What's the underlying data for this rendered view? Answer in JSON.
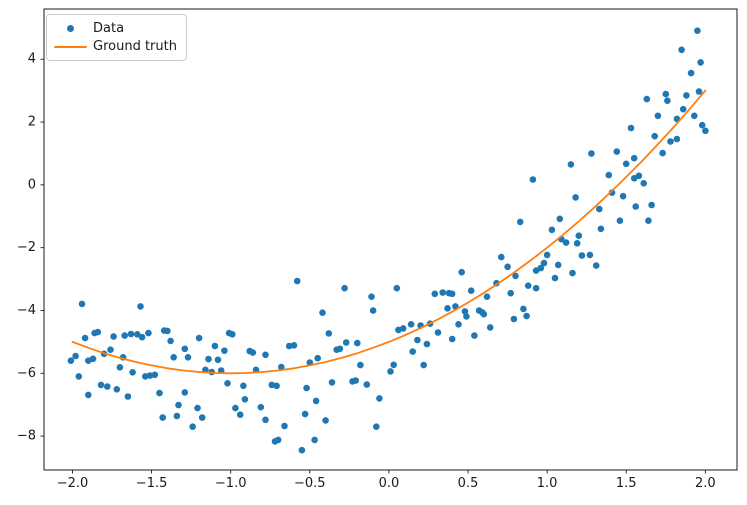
{
  "figure": {
    "background": "#ffffff"
  },
  "legend": {
    "items": [
      {
        "label": "Data",
        "marker": "dot",
        "color": "#1f77b4"
      },
      {
        "label": "Ground truth",
        "marker": "line",
        "color": "#ff7f0e"
      }
    ]
  },
  "axes": {
    "x": {
      "tick_labels": [
        "−2.0",
        "−1.5",
        "−1.0",
        "−0.5",
        "0.0",
        "0.5",
        "1.0",
        "1.5",
        "2.0"
      ],
      "tick_values": [
        -2.0,
        -1.5,
        -1.0,
        -0.5,
        0.0,
        0.5,
        1.0,
        1.5,
        2.0
      ]
    },
    "y": {
      "tick_labels": [
        "−8",
        "−6",
        "−4",
        "−2",
        "0",
        "2",
        "4"
      ],
      "tick_values": [
        -8,
        -6,
        -4,
        -2,
        0,
        2,
        4
      ]
    }
  },
  "chart_data": {
    "type": "scatter",
    "title": "",
    "xlabel": "",
    "ylabel": "",
    "xlim": [
      -2.18,
      2.2
    ],
    "ylim": [
      -9.08,
      5.6
    ],
    "grid": false,
    "legend_position": "upper left",
    "series": [
      {
        "name": "Data",
        "type": "scatter",
        "color": "#1f77b4",
        "marker_radius": 3.3,
        "points": [
          [
            -2.01,
            -5.6
          ],
          [
            -1.98,
            -5.45
          ],
          [
            -1.96,
            -6.1
          ],
          [
            -1.94,
            -3.79
          ],
          [
            -1.92,
            -4.88
          ],
          [
            -1.9,
            -5.6
          ],
          [
            -1.9,
            -6.69
          ],
          [
            -1.87,
            -5.54
          ],
          [
            -1.86,
            -4.72
          ],
          [
            -1.84,
            -4.69
          ],
          [
            -1.82,
            -6.37
          ],
          [
            -1.8,
            -5.38
          ],
          [
            -1.78,
            -6.42
          ],
          [
            -1.76,
            -5.25
          ],
          [
            -1.74,
            -4.83
          ],
          [
            -1.72,
            -6.51
          ],
          [
            -1.7,
            -5.81
          ],
          [
            -1.68,
            -5.49
          ],
          [
            -1.67,
            -4.8
          ],
          [
            -1.65,
            -6.74
          ],
          [
            -1.63,
            -4.75
          ],
          [
            -1.62,
            -5.97
          ],
          [
            -1.59,
            -4.76
          ],
          [
            -1.57,
            -3.87
          ],
          [
            -1.56,
            -4.85
          ],
          [
            -1.54,
            -6.1
          ],
          [
            -1.52,
            -4.72
          ],
          [
            -1.51,
            -6.07
          ],
          [
            -1.48,
            -6.05
          ],
          [
            -1.45,
            -6.63
          ],
          [
            -1.43,
            -7.41
          ],
          [
            -1.42,
            -4.64
          ],
          [
            -1.4,
            -4.65
          ],
          [
            -1.38,
            -4.97
          ],
          [
            -1.36,
            -5.49
          ],
          [
            -1.34,
            -7.36
          ],
          [
            -1.33,
            -7.01
          ],
          [
            -1.29,
            -5.22
          ],
          [
            -1.29,
            -6.61
          ],
          [
            -1.27,
            -5.49
          ],
          [
            -1.24,
            -7.7
          ],
          [
            -1.21,
            -7.11
          ],
          [
            -1.2,
            -4.88
          ],
          [
            -1.18,
            -7.41
          ],
          [
            -1.16,
            -5.89
          ],
          [
            -1.14,
            -5.55
          ],
          [
            -1.12,
            -5.96
          ],
          [
            -1.1,
            -5.13
          ],
          [
            -1.08,
            -5.57
          ],
          [
            -1.06,
            -5.91
          ],
          [
            -1.04,
            -5.28
          ],
          [
            -1.02,
            -6.32
          ],
          [
            -1.01,
            -4.72
          ],
          [
            -0.99,
            -4.76
          ],
          [
            -0.97,
            -7.11
          ],
          [
            -0.94,
            -7.32
          ],
          [
            -0.92,
            -6.4
          ],
          [
            -0.91,
            -6.83
          ],
          [
            -0.88,
            -5.29
          ],
          [
            -0.86,
            -5.34
          ],
          [
            -0.84,
            -5.89
          ],
          [
            -0.81,
            -7.08
          ],
          [
            -0.78,
            -5.41
          ],
          [
            -0.78,
            -7.48
          ],
          [
            -0.74,
            -6.37
          ],
          [
            -0.72,
            -8.17
          ],
          [
            -0.71,
            -6.4
          ],
          [
            -0.7,
            -8.12
          ],
          [
            -0.68,
            -5.8
          ],
          [
            -0.66,
            -7.68
          ],
          [
            -0.63,
            -5.13
          ],
          [
            -0.6,
            -5.11
          ],
          [
            -0.58,
            -3.06
          ],
          [
            -0.55,
            -8.45
          ],
          [
            -0.53,
            -7.3
          ],
          [
            -0.52,
            -6.47
          ],
          [
            -0.5,
            -5.66
          ],
          [
            -0.47,
            -8.12
          ],
          [
            -0.46,
            -6.88
          ],
          [
            -0.45,
            -5.52
          ],
          [
            -0.42,
            -4.07
          ],
          [
            -0.4,
            -7.5
          ],
          [
            -0.38,
            -4.73
          ],
          [
            -0.36,
            -6.29
          ],
          [
            -0.33,
            -5.25
          ],
          [
            -0.31,
            -5.22
          ],
          [
            -0.28,
            -3.29
          ],
          [
            -0.27,
            -5.02
          ],
          [
            -0.23,
            -6.26
          ],
          [
            -0.21,
            -6.23
          ],
          [
            -0.2,
            -5.04
          ],
          [
            -0.18,
            -5.74
          ],
          [
            -0.14,
            -6.36
          ],
          [
            -0.11,
            -3.56
          ],
          [
            -0.1,
            -4.0
          ],
          [
            -0.08,
            -7.7
          ],
          [
            -0.06,
            -6.8
          ],
          [
            0.01,
            -5.94
          ],
          [
            0.03,
            -5.73
          ],
          [
            0.05,
            -3.29
          ],
          [
            0.06,
            -4.62
          ],
          [
            0.09,
            -4.57
          ],
          [
            0.14,
            -4.44
          ],
          [
            0.15,
            -5.31
          ],
          [
            0.18,
            -4.94
          ],
          [
            0.2,
            -4.48
          ],
          [
            0.22,
            -5.74
          ],
          [
            0.24,
            -5.07
          ],
          [
            0.26,
            -4.42
          ],
          [
            0.29,
            -3.47
          ],
          [
            0.31,
            -4.7
          ],
          [
            0.34,
            -3.43
          ],
          [
            0.37,
            -3.93
          ],
          [
            0.38,
            -3.45
          ],
          [
            0.4,
            -3.47
          ],
          [
            0.4,
            -4.91
          ],
          [
            0.42,
            -3.87
          ],
          [
            0.44,
            -4.44
          ],
          [
            0.46,
            -2.78
          ],
          [
            0.48,
            -4.03
          ],
          [
            0.49,
            -4.19
          ],
          [
            0.52,
            -3.37
          ],
          [
            0.54,
            -4.8
          ],
          [
            0.57,
            -4.0
          ],
          [
            0.59,
            -4.06
          ],
          [
            0.6,
            -4.12
          ],
          [
            0.62,
            -3.56
          ],
          [
            0.64,
            -4.54
          ],
          [
            0.68,
            -3.13
          ],
          [
            0.71,
            -2.3
          ],
          [
            0.75,
            -2.61
          ],
          [
            0.77,
            -3.45
          ],
          [
            0.79,
            -4.27
          ],
          [
            0.8,
            -2.9
          ],
          [
            0.83,
            -1.18
          ],
          [
            0.85,
            -3.95
          ],
          [
            0.87,
            -4.18
          ],
          [
            0.88,
            -3.21
          ],
          [
            0.91,
            0.17
          ],
          [
            0.93,
            -2.73
          ],
          [
            0.93,
            -3.29
          ],
          [
            0.96,
            -2.65
          ],
          [
            0.98,
            -2.49
          ],
          [
            1.0,
            -2.23
          ],
          [
            1.03,
            -1.43
          ],
          [
            1.05,
            -2.97
          ],
          [
            1.07,
            -2.55
          ],
          [
            1.08,
            -1.08
          ],
          [
            1.09,
            -1.73
          ],
          [
            1.12,
            -1.84
          ],
          [
            1.15,
            0.65
          ],
          [
            1.16,
            -2.81
          ],
          [
            1.18,
            -0.4
          ],
          [
            1.19,
            -1.86
          ],
          [
            1.2,
            -1.62
          ],
          [
            1.22,
            -2.25
          ],
          [
            1.27,
            -2.23
          ],
          [
            1.28,
            1.0
          ],
          [
            1.31,
            -2.57
          ],
          [
            1.33,
            -0.77
          ],
          [
            1.34,
            -1.4
          ],
          [
            1.39,
            0.31
          ],
          [
            1.41,
            -0.25
          ],
          [
            1.44,
            1.06
          ],
          [
            1.46,
            -1.14
          ],
          [
            1.48,
            -0.36
          ],
          [
            1.5,
            0.67
          ],
          [
            1.53,
            1.81
          ],
          [
            1.55,
            0.85
          ],
          [
            1.55,
            0.21
          ],
          [
            1.56,
            -0.69
          ],
          [
            1.58,
            0.29
          ],
          [
            1.61,
            0.05
          ],
          [
            1.63,
            2.73
          ],
          [
            1.64,
            -1.14
          ],
          [
            1.66,
            -0.64
          ],
          [
            1.68,
            1.55
          ],
          [
            1.7,
            2.2
          ],
          [
            1.73,
            1.01
          ],
          [
            1.75,
            2.89
          ],
          [
            1.76,
            2.68
          ],
          [
            1.78,
            1.38
          ],
          [
            1.82,
            1.46
          ],
          [
            1.82,
            2.1
          ],
          [
            1.85,
            4.3
          ],
          [
            1.86,
            2.41
          ],
          [
            1.88,
            2.85
          ],
          [
            1.91,
            3.56
          ],
          [
            1.93,
            2.2
          ],
          [
            1.95,
            4.91
          ],
          [
            1.96,
            2.97
          ],
          [
            1.97,
            3.9
          ],
          [
            1.98,
            1.9
          ],
          [
            2.0,
            1.72
          ]
        ]
      },
      {
        "name": "Ground truth",
        "type": "line",
        "color": "#ff7f0e",
        "line_width": 1.8,
        "points": [
          [
            -2.0,
            -5.0
          ],
          [
            -1.9,
            -5.19
          ],
          [
            -1.8,
            -5.36
          ],
          [
            -1.7,
            -5.51
          ],
          [
            -1.6,
            -5.64
          ],
          [
            -1.5,
            -5.75
          ],
          [
            -1.4,
            -5.84
          ],
          [
            -1.3,
            -5.91
          ],
          [
            -1.2,
            -5.96
          ],
          [
            -1.1,
            -5.99
          ],
          [
            -1.0,
            -6.0
          ],
          [
            -0.9,
            -5.99
          ],
          [
            -0.8,
            -5.96
          ],
          [
            -0.7,
            -5.91
          ],
          [
            -0.6,
            -5.84
          ],
          [
            -0.5,
            -5.75
          ],
          [
            -0.4,
            -5.64
          ],
          [
            -0.3,
            -5.51
          ],
          [
            -0.2,
            -5.36
          ],
          [
            -0.1,
            -5.19
          ],
          [
            0.0,
            -5.0
          ],
          [
            0.1,
            -4.79
          ],
          [
            0.2,
            -4.56
          ],
          [
            0.3,
            -4.31
          ],
          [
            0.4,
            -4.04
          ],
          [
            0.5,
            -3.75
          ],
          [
            0.6,
            -3.44
          ],
          [
            0.7,
            -3.11
          ],
          [
            0.8,
            -2.76
          ],
          [
            0.9,
            -2.39
          ],
          [
            1.0,
            -2.0
          ],
          [
            1.1,
            -1.59
          ],
          [
            1.2,
            -1.16
          ],
          [
            1.3,
            -0.71
          ],
          [
            1.4,
            -0.24
          ],
          [
            1.5,
            0.25
          ],
          [
            1.6,
            0.76
          ],
          [
            1.7,
            1.29
          ],
          [
            1.8,
            1.84
          ],
          [
            1.9,
            2.41
          ],
          [
            2.0,
            3.0
          ]
        ]
      }
    ]
  },
  "style": {
    "spine_color": "#1a1a1a",
    "tick_color": "#1a1a1a",
    "tick_label_color": "#1a1a1a"
  }
}
